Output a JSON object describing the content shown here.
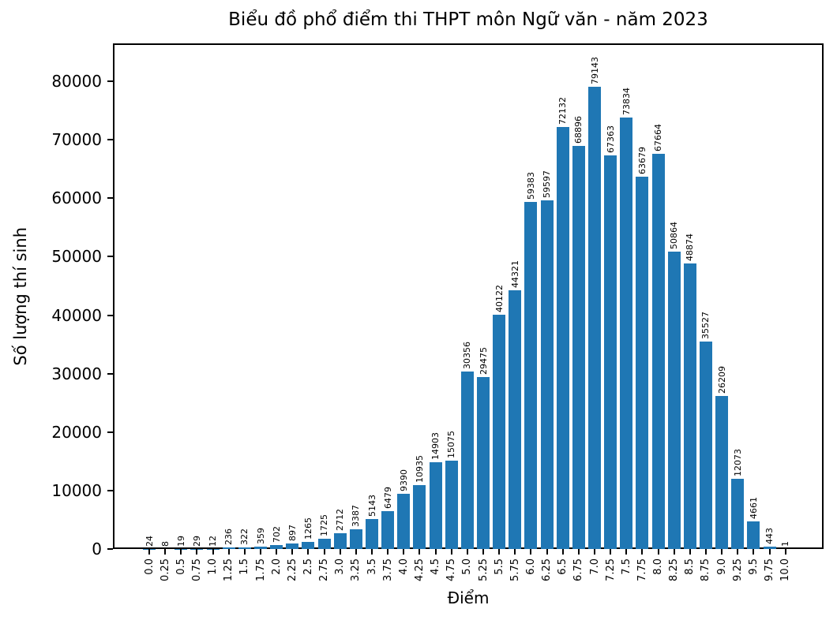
{
  "chart_data": {
    "type": "bar",
    "title": "Biểu đồ phổ điểm thi THPT môn Ngữ văn - năm 2023",
    "xlabel": "Điểm",
    "ylabel": "Số lượng thí sinh",
    "categories": [
      "0.0",
      "0.25",
      "0.5",
      "0.75",
      "1.0",
      "1.25",
      "1.5",
      "1.75",
      "2.0",
      "2.25",
      "2.5",
      "2.75",
      "3.0",
      "3.25",
      "3.5",
      "3.75",
      "4.0",
      "4.25",
      "4.5",
      "4.75",
      "5.0",
      "5.25",
      "5.5",
      "5.75",
      "6.0",
      "6.25",
      "6.5",
      "6.75",
      "7.0",
      "7.25",
      "7.5",
      "7.75",
      "8.0",
      "8.25",
      "8.5",
      "8.75",
      "9.0",
      "9.25",
      "9.5",
      "9.75",
      "10.0"
    ],
    "values": [
      24,
      8,
      19,
      29,
      12,
      236,
      322,
      359,
      702,
      897,
      1265,
      1725,
      2712,
      3387,
      5143,
      6479,
      9390,
      10935,
      14903,
      15075,
      30356,
      29475,
      40122,
      44321,
      59383,
      59597,
      72132,
      68896,
      79143,
      67363,
      73834,
      63679,
      67664,
      50864,
      48874,
      35527,
      26209,
      12073,
      4661,
      443,
      1
    ],
    "yticks": [
      0,
      10000,
      20000,
      30000,
      40000,
      50000,
      60000,
      70000,
      80000
    ],
    "ylim": [
      0,
      86500
    ],
    "bar_color": "#1f77b4",
    "text_color": "#000000",
    "background_color": "#ffffff",
    "grid": false,
    "legend": "none",
    "bar_label_rotation_deg": 90,
    "xtick_rotation_deg": 90
  }
}
